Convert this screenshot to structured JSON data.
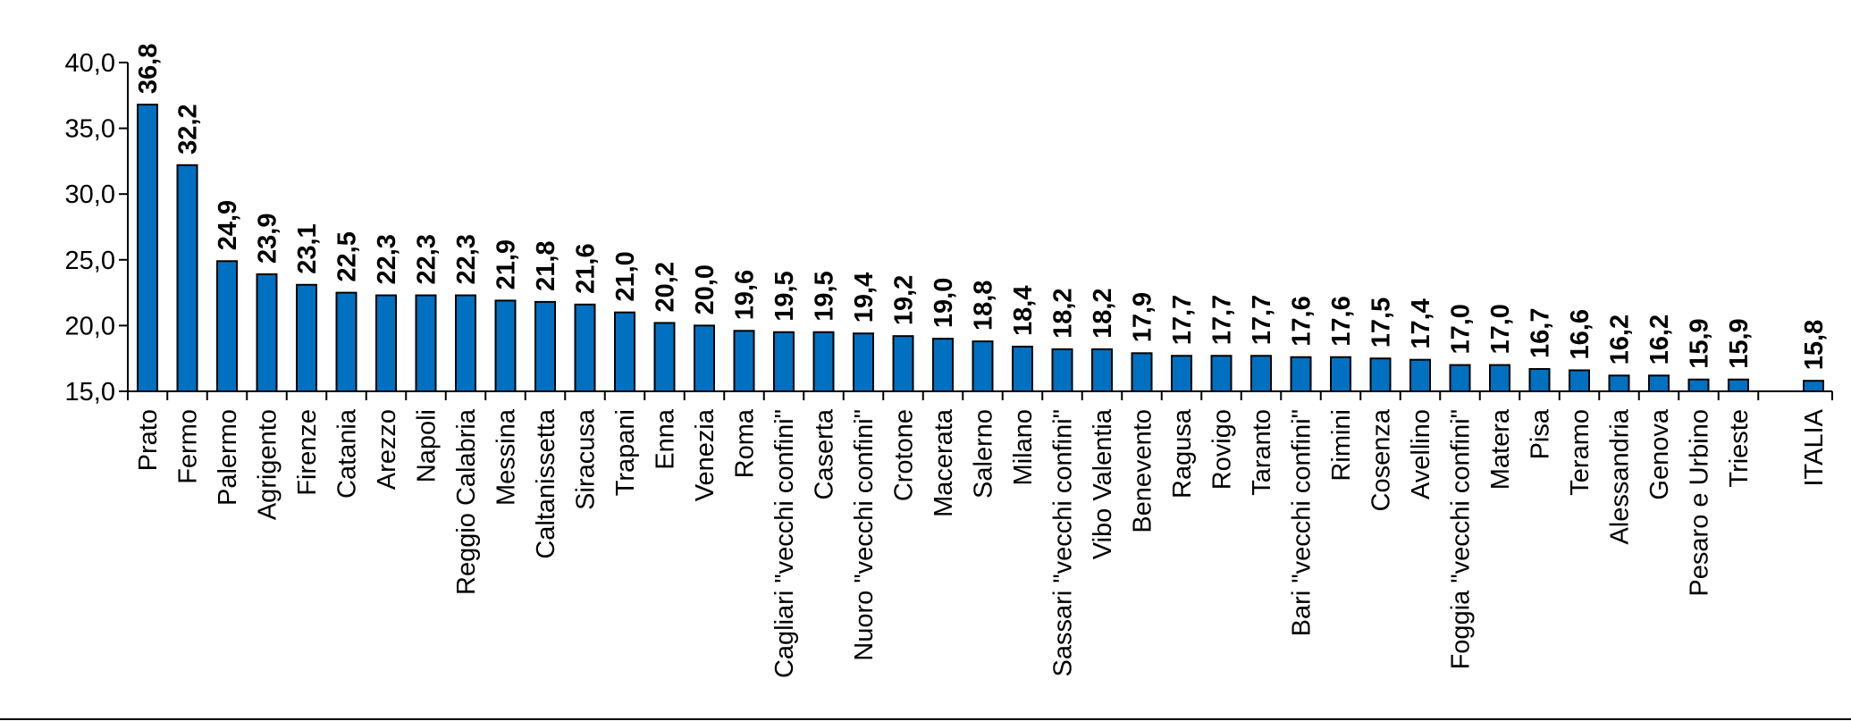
{
  "chart_data": {
    "type": "bar",
    "title": "",
    "xlabel": "",
    "ylabel": "",
    "ylim": [
      15,
      40
    ],
    "yticks": [
      "15,0",
      "20,0",
      "25,0",
      "30,0",
      "35,0",
      "40,0"
    ],
    "ytick_values": [
      15,
      20,
      25,
      30,
      35,
      40
    ],
    "grid": false,
    "bar_color": "#0070C0",
    "categories": [
      "Prato",
      "Fermo",
      "Palermo",
      "Agrigento",
      "Firenze",
      "Catania",
      "Arezzo",
      "Napoli",
      "Reggio Calabria",
      "Messina",
      "Caltanissetta",
      "Siracusa",
      "Trapani",
      "Enna",
      "Venezia",
      "Roma",
      "Cagliari \"vecchi confini\"",
      "Caserta",
      "Nuoro \"vecchi confini\"",
      "Crotone",
      "Macerata",
      "Salerno",
      "Milano",
      "Sassari \"vecchi confini\"",
      "Vibo Valentia",
      "Benevento",
      "Ragusa",
      "Rovigo",
      "Taranto",
      "Bari \"vecchi confini\"",
      "Rimini",
      "Cosenza",
      "Avellino",
      "Foggia \"vecchi confini\"",
      "Matera",
      "Pisa",
      "Teramo",
      "Alessandria",
      "Genova",
      "Pesaro e Urbino",
      "Trieste",
      "ITALIA"
    ],
    "values": [
      36.8,
      32.2,
      24.9,
      23.9,
      23.1,
      22.5,
      22.3,
      22.3,
      22.3,
      21.9,
      21.8,
      21.6,
      21.0,
      20.2,
      20.0,
      19.6,
      19.5,
      19.5,
      19.4,
      19.2,
      19.0,
      18.8,
      18.4,
      18.2,
      18.2,
      17.9,
      17.7,
      17.7,
      17.7,
      17.6,
      17.6,
      17.5,
      17.4,
      17.0,
      17.0,
      16.7,
      16.6,
      16.2,
      16.2,
      15.9,
      15.9,
      15.8
    ],
    "value_labels": [
      "36,8",
      "32,2",
      "24,9",
      "23,9",
      "23,1",
      "22,5",
      "22,3",
      "22,3",
      "22,3",
      "21,9",
      "21,8",
      "21,6",
      "21,0",
      "20,2",
      "20,0",
      "19,6",
      "19,5",
      "19,5",
      "19,4",
      "19,2",
      "19,0",
      "18,8",
      "18,4",
      "18,2",
      "18,2",
      "17,9",
      "17,7",
      "17,7",
      "17,7",
      "17,6",
      "17,6",
      "17,5",
      "17,4",
      "17,0",
      "17,0",
      "16,7",
      "16,6",
      "16,2",
      "16,2",
      "15,9",
      "15,9",
      "15,8"
    ]
  }
}
